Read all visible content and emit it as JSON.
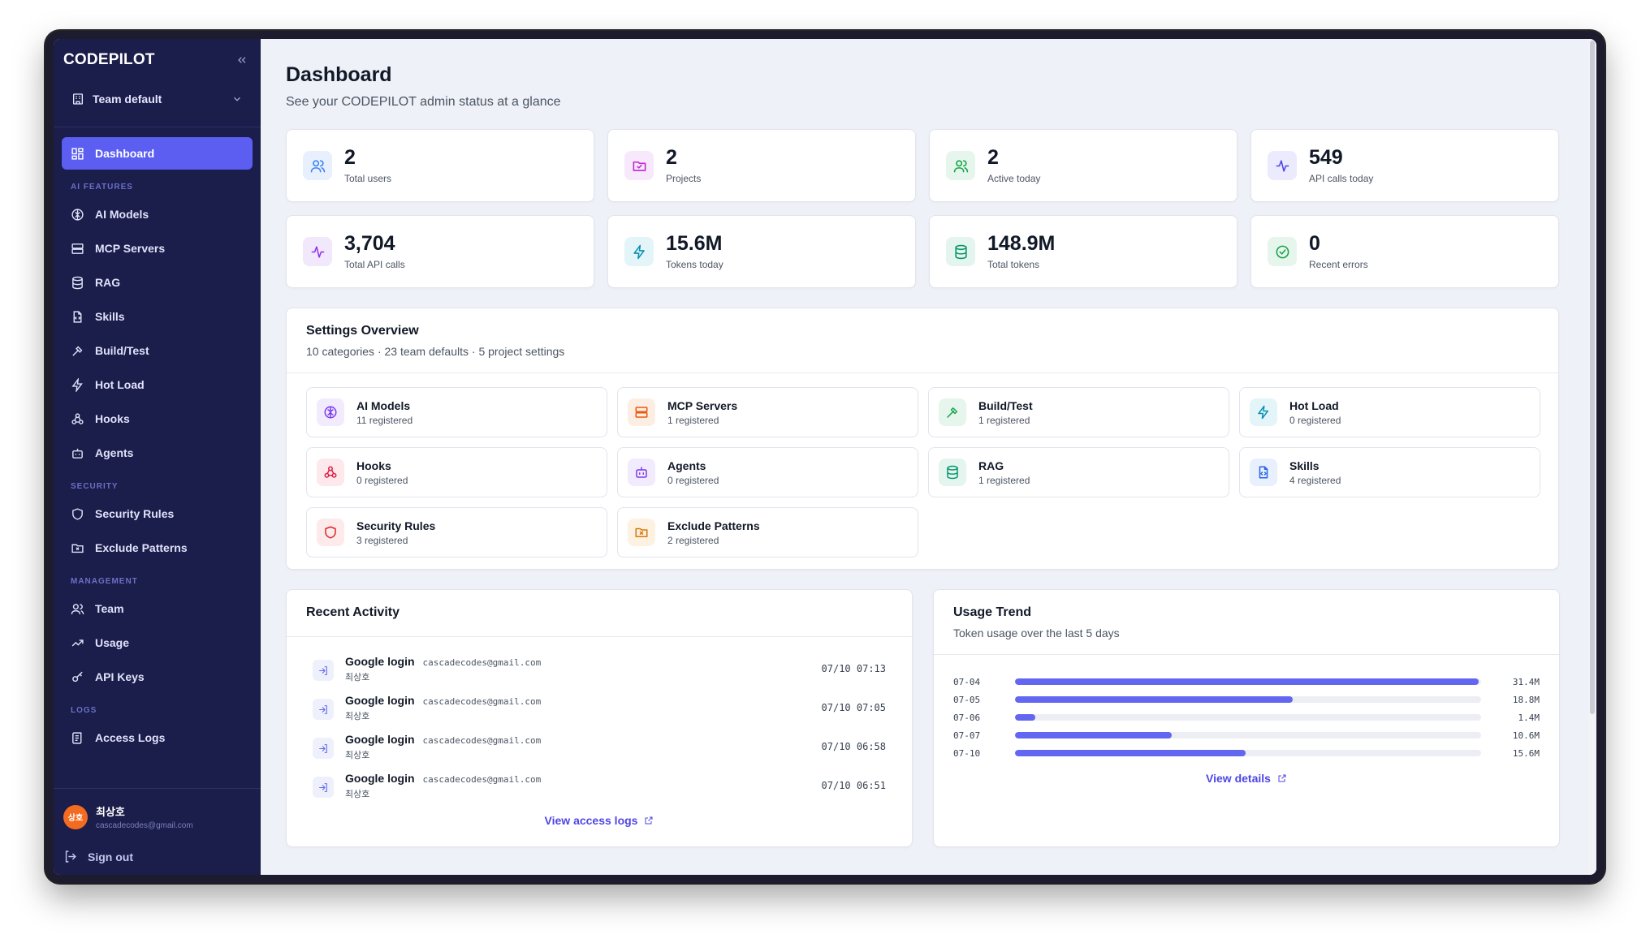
{
  "app": {
    "brand": "CODEPILOT",
    "team": "Team default"
  },
  "sidebar": {
    "dashboard": "Dashboard",
    "sections": {
      "ai": "AI FEATURES",
      "security": "SECURITY",
      "management": "MANAGEMENT",
      "logs": "LOGS"
    },
    "ai_items": [
      "AI Models",
      "MCP Servers",
      "RAG",
      "Skills",
      "Build/Test",
      "Hot Load",
      "Hooks",
      "Agents"
    ],
    "security_items": [
      "Security Rules",
      "Exclude Patterns"
    ],
    "management_items": [
      "Team",
      "Usage",
      "API Keys"
    ],
    "logs_items": [
      "Access Logs"
    ],
    "user": {
      "initials": "상호",
      "name": "최상호",
      "email": "cascadecodes@gmail.com"
    },
    "sign_out": "Sign out"
  },
  "header": {
    "title": "Dashboard",
    "subtitle": "See your CODEPILOT admin status at a glance"
  },
  "stats": [
    {
      "value": "2",
      "label": "Total users",
      "icon": "users-icon",
      "color": "#3b82f6",
      "bg": "#e8f0fe"
    },
    {
      "value": "2",
      "label": "Projects",
      "icon": "folder-icon",
      "color": "#c026d3",
      "bg": "#f7e8fb"
    },
    {
      "value": "2",
      "label": "Active today",
      "icon": "users-icon",
      "color": "#16a34a",
      "bg": "#e7f6ec"
    },
    {
      "value": "549",
      "label": "API calls today",
      "icon": "activity-icon",
      "color": "#4f46e5",
      "bg": "#ebebfd"
    },
    {
      "value": "3,704",
      "label": "Total API calls",
      "icon": "activity-icon",
      "color": "#9333ea",
      "bg": "#f1e8fc"
    },
    {
      "value": "15.6M",
      "label": "Tokens today",
      "icon": "zap-icon",
      "color": "#0891b2",
      "bg": "#e4f5f9"
    },
    {
      "value": "148.9M",
      "label": "Total tokens",
      "icon": "database-icon",
      "color": "#059669",
      "bg": "#e3f5ee"
    },
    {
      "value": "0",
      "label": "Recent errors",
      "icon": "check-circle-icon",
      "color": "#16a34a",
      "bg": "#e7f6ec"
    }
  ],
  "settings": {
    "title": "Settings Overview",
    "subtitle": "10 categories · 23 team defaults · 5 project settings",
    "items": [
      {
        "name": "AI Models",
        "count": "11 registered",
        "icon": "brain-icon",
        "color": "#7c3aed",
        "bg": "#f1ebfd"
      },
      {
        "name": "MCP Servers",
        "count": "1 registered",
        "icon": "server-icon",
        "color": "#ea580c",
        "bg": "#fdeee4"
      },
      {
        "name": "Build/Test",
        "count": "1 registered",
        "icon": "hammer-icon",
        "color": "#16a34a",
        "bg": "#e7f6ec"
      },
      {
        "name": "Hot Load",
        "count": "0 registered",
        "icon": "zap-icon",
        "color": "#0891b2",
        "bg": "#e4f5f9"
      },
      {
        "name": "Hooks",
        "count": "0 registered",
        "icon": "webhook-icon",
        "color": "#e11d48",
        "bg": "#fde8ec"
      },
      {
        "name": "Agents",
        "count": "0 registered",
        "icon": "bot-icon",
        "color": "#7c3aed",
        "bg": "#f1ebfd"
      },
      {
        "name": "RAG",
        "count": "1 registered",
        "icon": "database-icon",
        "color": "#059669",
        "bg": "#e3f5ee"
      },
      {
        "name": "Skills",
        "count": "4 registered",
        "icon": "file-code-icon",
        "color": "#2563eb",
        "bg": "#e8effd"
      },
      {
        "name": "Security Rules",
        "count": "3 registered",
        "icon": "shield-icon",
        "color": "#dc2626",
        "bg": "#fdeaea"
      },
      {
        "name": "Exclude Patterns",
        "count": "2 registered",
        "icon": "folder-x-icon",
        "color": "#d97706",
        "bg": "#fdf2e2"
      }
    ]
  },
  "activity": {
    "title": "Recent Activity",
    "items": [
      {
        "type": "Google login",
        "email": "cascadecodes@gmail.com",
        "user": "최상호",
        "time": "07/10 07:13"
      },
      {
        "type": "Google login",
        "email": "cascadecodes@gmail.com",
        "user": "최상호",
        "time": "07/10 07:05"
      },
      {
        "type": "Google login",
        "email": "cascadecodes@gmail.com",
        "user": "최상호",
        "time": "07/10 06:58"
      },
      {
        "type": "Google login",
        "email": "cascadecodes@gmail.com",
        "user": "최상호",
        "time": "07/10 06:51"
      }
    ],
    "link": "View access logs"
  },
  "trend": {
    "title": "Usage Trend",
    "subtitle": "Token usage over the last 5 days",
    "link": "View details"
  },
  "chart_data": {
    "type": "bar",
    "categories": [
      "07-04",
      "07-05",
      "07-06",
      "07-07",
      "07-10"
    ],
    "values": [
      31.4,
      18.8,
      1.4,
      10.6,
      15.6
    ],
    "value_labels": [
      "31.4M",
      "18.8M",
      "1.4M",
      "10.6M",
      "15.6M"
    ],
    "bar_color": "#6366f1"
  }
}
